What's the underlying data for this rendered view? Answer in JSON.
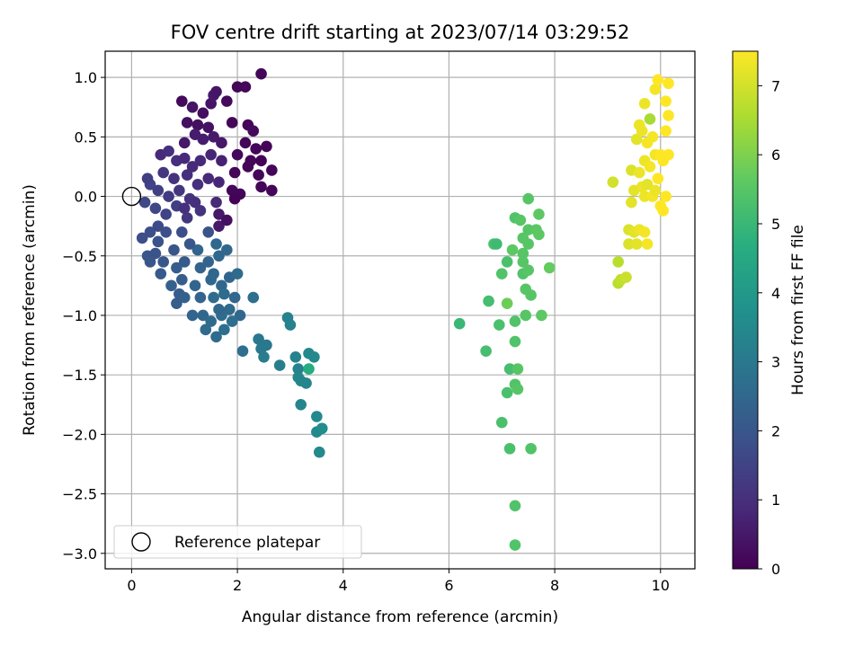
{
  "chart_data": {
    "type": "scatter",
    "title": "FOV centre drift starting at 2023/07/14 03:29:52",
    "xlabel": "Angular distance from reference (arcmin)",
    "ylabel": "Rotation from reference (arcmin)",
    "xlim": [
      -0.5,
      10.65
    ],
    "ylim": [
      -3.13,
      1.22
    ],
    "xticks": [
      0,
      2,
      4,
      6,
      8,
      10
    ],
    "yticks": [
      -3.0,
      -2.5,
      -2.0,
      -1.5,
      -1.0,
      -0.5,
      0.0,
      0.5,
      1.0
    ],
    "xtick_labels": [
      "0",
      "2",
      "4",
      "6",
      "8",
      "10"
    ],
    "ytick_labels": [
      "−3.0",
      "−2.5",
      "−2.0",
      "−1.5",
      "−1.0",
      "−0.5",
      "0.0",
      "0.5",
      "1.0"
    ],
    "grid": true,
    "colorbar": {
      "label": "Hours from first FF file",
      "colormap": "viridis",
      "range": [
        0,
        7.5
      ],
      "ticks": [
        0,
        1,
        2,
        3,
        4,
        5,
        6,
        7
      ],
      "tick_labels": [
        "0",
        "1",
        "2",
        "3",
        "4",
        "5",
        "6",
        "7"
      ]
    },
    "reference_marker": {
      "label": "Reference platepar",
      "x": 0,
      "y": 0
    },
    "legend_location": "lower-left",
    "points": [
      [
        0.95,
        0.8,
        0.2
      ],
      [
        1.05,
        0.62,
        0.3
      ],
      [
        1.15,
        0.75,
        0.4
      ],
      [
        1.35,
        0.7,
        0.3
      ],
      [
        1.5,
        0.78,
        0.4
      ],
      [
        1.55,
        0.85,
        0.5
      ],
      [
        1.6,
        0.88,
        0.45
      ],
      [
        1.8,
        0.8,
        0.2
      ],
      [
        1.25,
        0.6,
        0.3
      ],
      [
        1.45,
        0.58,
        0.35
      ],
      [
        1.0,
        0.45,
        0.5
      ],
      [
        1.2,
        0.52,
        0.6
      ],
      [
        1.35,
        0.48,
        0.6
      ],
      [
        1.55,
        0.5,
        0.55
      ],
      [
        1.7,
        0.45,
        0.5
      ],
      [
        0.55,
        0.35,
        0.9
      ],
      [
        0.7,
        0.38,
        1.0
      ],
      [
        0.85,
        0.3,
        1.0
      ],
      [
        1.0,
        0.32,
        0.9
      ],
      [
        1.15,
        0.25,
        0.9
      ],
      [
        1.3,
        0.3,
        0.9
      ],
      [
        1.5,
        0.35,
        0.8
      ],
      [
        1.7,
        0.3,
        0.7
      ],
      [
        0.6,
        0.2,
        1.2
      ],
      [
        0.8,
        0.15,
        1.1
      ],
      [
        1.05,
        0.18,
        1.0
      ],
      [
        1.25,
        0.1,
        1.0
      ],
      [
        1.45,
        0.15,
        0.9
      ],
      [
        1.65,
        0.12,
        0.8
      ],
      [
        0.35,
        0.1,
        1.5
      ],
      [
        0.5,
        0.05,
        1.4
      ],
      [
        0.7,
        0.0,
        1.3
      ],
      [
        0.9,
        0.05,
        1.2
      ],
      [
        1.1,
        -0.02,
        1.1
      ],
      [
        0.25,
        -0.05,
        1.6
      ],
      [
        0.45,
        -0.1,
        1.6
      ],
      [
        0.65,
        -0.15,
        1.5
      ],
      [
        0.85,
        -0.08,
        1.4
      ],
      [
        1.05,
        -0.18,
        1.2
      ],
      [
        1.3,
        -0.12,
        1.1
      ],
      [
        1.6,
        -0.05,
        0.9
      ],
      [
        1.65,
        -0.15,
        0.5
      ],
      [
        1.65,
        -0.25,
        0.5
      ],
      [
        1.8,
        -0.2,
        0.3
      ],
      [
        1.9,
        0.62,
        0.1
      ],
      [
        2.0,
        0.92,
        0.1
      ],
      [
        2.15,
        0.92,
        0.1
      ],
      [
        2.2,
        0.6,
        0.1
      ],
      [
        2.3,
        0.55,
        0.2
      ],
      [
        2.45,
        1.03,
        0.1
      ],
      [
        2.15,
        0.45,
        0.1
      ],
      [
        2.35,
        0.4,
        0.1
      ],
      [
        2.55,
        0.42,
        0.1
      ],
      [
        2.0,
        0.35,
        0.15
      ],
      [
        2.25,
        0.3,
        0.1
      ],
      [
        2.45,
        0.3,
        0.05
      ],
      [
        1.95,
        0.2,
        0.1
      ],
      [
        2.2,
        0.25,
        0.1
      ],
      [
        2.4,
        0.18,
        0.1
      ],
      [
        2.65,
        0.22,
        0.1
      ],
      [
        1.9,
        0.05,
        0.1
      ],
      [
        2.05,
        0.02,
        0.1
      ],
      [
        2.45,
        0.08,
        0.1
      ],
      [
        2.65,
        0.05,
        0.1
      ],
      [
        1.95,
        -0.02,
        0.05
      ],
      [
        1.2,
        -0.05,
        1.0
      ],
      [
        1.0,
        -0.1,
        1.0
      ],
      [
        0.3,
        0.15,
        1.4
      ],
      [
        0.2,
        -0.35,
        1.8
      ],
      [
        0.35,
        -0.3,
        1.8
      ],
      [
        0.5,
        -0.38,
        1.9
      ],
      [
        0.3,
        -0.5,
        2.0
      ],
      [
        0.45,
        -0.48,
        1.9
      ],
      [
        0.35,
        -0.55,
        2.0
      ],
      [
        0.6,
        -0.55,
        2.0
      ],
      [
        0.55,
        -0.65,
        2.1
      ],
      [
        0.8,
        -0.45,
        2.0
      ],
      [
        0.85,
        -0.6,
        2.2
      ],
      [
        0.95,
        -0.7,
        2.2
      ],
      [
        1.0,
        -0.55,
        2.1
      ],
      [
        0.75,
        -0.75,
        2.3
      ],
      [
        0.9,
        -0.82,
        2.2
      ],
      [
        0.85,
        -0.9,
        2.2
      ],
      [
        1.0,
        -0.85,
        2.3
      ],
      [
        1.25,
        -0.45,
        2.4
      ],
      [
        1.3,
        -0.6,
        2.4
      ],
      [
        1.45,
        -0.55,
        2.4
      ],
      [
        1.55,
        -0.65,
        2.5
      ],
      [
        1.6,
        -0.4,
        2.5
      ],
      [
        1.65,
        -0.5,
        2.5
      ],
      [
        1.8,
        -0.45,
        2.5
      ],
      [
        1.5,
        -0.7,
        2.5
      ],
      [
        1.7,
        -0.75,
        2.5
      ],
      [
        1.85,
        -0.68,
        2.4
      ],
      [
        2.0,
        -0.65,
        2.6
      ],
      [
        1.3,
        -0.85,
        2.4
      ],
      [
        1.55,
        -0.85,
        2.6
      ],
      [
        1.75,
        -0.82,
        2.6
      ],
      [
        1.95,
        -0.85,
        2.5
      ],
      [
        1.15,
        -1.0,
        2.4
      ],
      [
        1.35,
        -1.0,
        2.5
      ],
      [
        1.5,
        -1.05,
        2.6
      ],
      [
        1.7,
        -1.0,
        2.6
      ],
      [
        1.85,
        -0.95,
        2.6
      ],
      [
        2.05,
        -1.0,
        2.5
      ],
      [
        1.4,
        -1.12,
        2.6
      ],
      [
        1.6,
        -1.18,
        2.6
      ],
      [
        1.75,
        -1.12,
        2.7
      ],
      [
        1.9,
        -1.05,
        2.7
      ],
      [
        2.1,
        -1.3,
        2.7
      ],
      [
        2.3,
        -0.85,
        2.7
      ],
      [
        1.2,
        -0.75,
        2.4
      ],
      [
        1.65,
        -0.95,
        2.5
      ],
      [
        0.5,
        -0.25,
        1.7
      ],
      [
        0.65,
        -0.3,
        1.8
      ],
      [
        0.95,
        -0.3,
        1.8
      ],
      [
        1.1,
        -0.4,
        2.0
      ],
      [
        1.45,
        -0.3,
        1.9
      ],
      [
        2.4,
        -1.2,
        3.0
      ],
      [
        2.45,
        -1.28,
        3.0
      ],
      [
        2.55,
        -1.25,
        3.0
      ],
      [
        2.5,
        -1.35,
        3.1
      ],
      [
        2.8,
        -1.42,
        3.2
      ],
      [
        2.95,
        -1.02,
        3.3
      ],
      [
        3.0,
        -1.08,
        3.3
      ],
      [
        3.1,
        -1.35,
        3.3
      ],
      [
        3.15,
        -1.45,
        3.3
      ],
      [
        3.15,
        -1.52,
        3.4
      ],
      [
        3.2,
        -1.55,
        3.4
      ],
      [
        3.3,
        -1.57,
        3.4
      ],
      [
        3.35,
        -1.32,
        3.5
      ],
      [
        3.45,
        -1.35,
        3.5
      ],
      [
        3.35,
        -1.45,
        4.6
      ],
      [
        3.2,
        -1.75,
        3.4
      ],
      [
        3.5,
        -1.85,
        3.5
      ],
      [
        3.5,
        -1.98,
        3.5
      ],
      [
        3.6,
        -1.95,
        3.6
      ],
      [
        3.55,
        -2.15,
        3.5
      ],
      [
        6.2,
        -1.07,
        5.0
      ],
      [
        6.7,
        -1.3,
        5.2
      ],
      [
        6.75,
        -0.88,
        5.2
      ],
      [
        6.85,
        -0.4,
        5.3
      ],
      [
        6.9,
        -0.4,
        5.1
      ],
      [
        6.95,
        -1.08,
        5.3
      ],
      [
        7.0,
        -0.65,
        5.4
      ],
      [
        7.0,
        -1.9,
        5.3
      ],
      [
        7.1,
        -0.55,
        5.3
      ],
      [
        7.1,
        -0.9,
        5.8
      ],
      [
        7.15,
        -1.45,
        5.2
      ],
      [
        7.1,
        -1.65,
        5.3
      ],
      [
        7.15,
        -2.12,
        5.3
      ],
      [
        7.25,
        -0.18,
        5.4
      ],
      [
        7.25,
        -1.05,
        5.4
      ],
      [
        7.25,
        -1.22,
        5.4
      ],
      [
        7.25,
        -1.58,
        5.4
      ],
      [
        7.25,
        -2.6,
        5.4
      ],
      [
        7.25,
        -2.93,
        5.4
      ],
      [
        7.3,
        -1.45,
        5.5
      ],
      [
        7.3,
        -1.62,
        5.5
      ],
      [
        7.35,
        -0.2,
        5.5
      ],
      [
        7.4,
        -0.35,
        5.5
      ],
      [
        7.4,
        -0.48,
        5.5
      ],
      [
        7.4,
        -0.55,
        5.5
      ],
      [
        7.4,
        -0.65,
        5.4
      ],
      [
        7.45,
        -1.0,
        5.5
      ],
      [
        7.45,
        -0.78,
        5.5
      ],
      [
        7.5,
        -0.28,
        5.5
      ],
      [
        7.5,
        -0.4,
        5.5
      ],
      [
        7.5,
        -0.02,
        5.5
      ],
      [
        7.5,
        -0.62,
        5.5
      ],
      [
        7.55,
        -0.83,
        5.5
      ],
      [
        7.55,
        -2.12,
        5.4
      ],
      [
        7.65,
        -0.28,
        5.6
      ],
      [
        7.7,
        -0.32,
        5.6
      ],
      [
        7.7,
        -0.15,
        5.6
      ],
      [
        7.75,
        -1.0,
        5.6
      ],
      [
        7.9,
        -0.6,
        5.7
      ],
      [
        7.2,
        -0.45,
        5.6
      ],
      [
        9.1,
        0.12,
        7.0
      ],
      [
        9.2,
        -0.55,
        6.7
      ],
      [
        9.2,
        -0.73,
        6.7
      ],
      [
        9.25,
        -0.7,
        6.8
      ],
      [
        9.35,
        -0.68,
        6.9
      ],
      [
        9.4,
        -0.4,
        7.1
      ],
      [
        9.4,
        -0.28,
        7.1
      ],
      [
        9.45,
        0.22,
        7.1
      ],
      [
        9.45,
        -0.05,
        7.2
      ],
      [
        9.5,
        0.05,
        7.2
      ],
      [
        9.5,
        -0.3,
        7.2
      ],
      [
        9.55,
        -0.4,
        7.2
      ],
      [
        9.55,
        0.48,
        7.2
      ],
      [
        9.6,
        0.6,
        7.3
      ],
      [
        9.6,
        0.2,
        7.3
      ],
      [
        9.6,
        -0.28,
        7.3
      ],
      [
        9.65,
        0.08,
        7.3
      ],
      [
        9.65,
        0.55,
        7.3
      ],
      [
        9.7,
        0.78,
        7.3
      ],
      [
        9.7,
        0.3,
        7.3
      ],
      [
        9.7,
        0.0,
        7.3
      ],
      [
        9.7,
        -0.3,
        7.4
      ],
      [
        9.75,
        -0.4,
        7.4
      ],
      [
        9.75,
        0.45,
        7.4
      ],
      [
        9.8,
        0.25,
        7.4
      ],
      [
        9.8,
        0.65,
        6.5
      ],
      [
        9.85,
        0.5,
        7.4
      ],
      [
        9.85,
        0.0,
        7.4
      ],
      [
        9.9,
        0.35,
        7.4
      ],
      [
        9.9,
        0.9,
        7.4
      ],
      [
        9.95,
        0.15,
        7.5
      ],
      [
        9.95,
        0.98,
        7.5
      ],
      [
        10.0,
        0.35,
        7.5
      ],
      [
        10.0,
        -0.08,
        7.5
      ],
      [
        10.05,
        -0.12,
        7.5
      ],
      [
        10.05,
        0.3,
        7.5
      ],
      [
        10.1,
        0.8,
        7.5
      ],
      [
        10.1,
        0.55,
        7.5
      ],
      [
        10.1,
        0.0,
        7.5
      ],
      [
        10.15,
        0.95,
        7.5
      ],
      [
        10.15,
        0.35,
        7.5
      ],
      [
        10.15,
        0.68,
        7.5
      ],
      [
        9.75,
        0.1,
        7.2
      ],
      [
        9.9,
        0.05,
        7.3
      ]
    ]
  }
}
